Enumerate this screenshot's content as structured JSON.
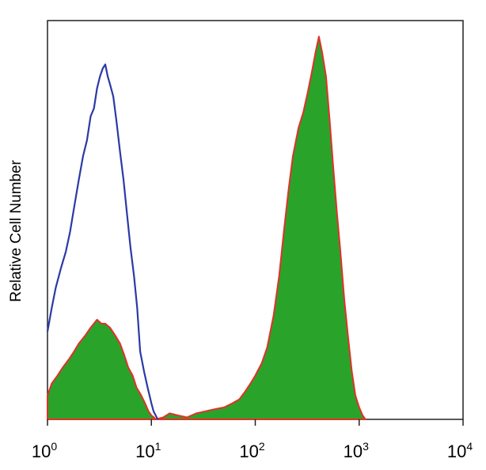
{
  "chart_data": {
    "type": "area",
    "title": "",
    "xlabel": "",
    "ylabel": "Relative Cell Number",
    "x_scale": "log",
    "xlim": [
      1,
      10000
    ],
    "ylim": [
      0,
      100
    ],
    "grid": false,
    "legend": "none",
    "x_ticks": [
      {
        "base": "10",
        "exp": "0",
        "value": 1
      },
      {
        "base": "10",
        "exp": "1",
        "value": 10
      },
      {
        "base": "10",
        "exp": "2",
        "value": 100
      },
      {
        "base": "10",
        "exp": "3",
        "value": 1000
      },
      {
        "base": "10",
        "exp": "4",
        "value": 10000
      }
    ],
    "series": [
      {
        "style": "line",
        "color": "#2b3aa6",
        "x": [
          1.0,
          1.1,
          1.2,
          1.35,
          1.5,
          1.65,
          1.8,
          2.0,
          2.2,
          2.4,
          2.6,
          2.8,
          3.0,
          3.2,
          3.4,
          3.6,
          3.8,
          4.0,
          4.3,
          4.6,
          5.0,
          5.4,
          5.8,
          6.3,
          6.8,
          7.3,
          7.8,
          8.5,
          9.2,
          10.0,
          10.5,
          11.0,
          11.5
        ],
        "y": [
          22,
          28,
          33,
          38,
          42,
          47,
          53,
          60,
          66,
          70,
          76,
          78,
          83,
          86,
          88,
          89,
          86,
          84,
          81,
          75,
          67,
          60,
          52,
          43,
          36,
          28,
          17,
          12,
          8,
          4,
          2,
          1,
          0
        ]
      },
      {
        "style": "filled",
        "color": "#2aa32a",
        "edge_color": "#e0322a",
        "x": [
          1.0,
          1.1,
          1.25,
          1.4,
          1.6,
          1.8,
          2.0,
          2.3,
          2.6,
          3.0,
          3.3,
          3.6,
          4.0,
          4.5,
          5.0,
          5.5,
          6.0,
          6.6,
          7.2,
          8.0,
          8.7,
          9.4,
          10.0,
          10.6,
          11.0
        ],
        "y": [
          6,
          9,
          11,
          13,
          15,
          17,
          19,
          21,
          23,
          25,
          24,
          24,
          23,
          21,
          19,
          16,
          13,
          11,
          8,
          6,
          4,
          2,
          1,
          0.5,
          0
        ]
      },
      {
        "style": "filled",
        "color": "#2aa32a",
        "edge_color": "#e0322a",
        "x": [
          11,
          13,
          15,
          18,
          22,
          27,
          33,
          40,
          50,
          60,
          70,
          80,
          90,
          100,
          115,
          130,
          150,
          170,
          190,
          210,
          230,
          260,
          290,
          320,
          350,
          380,
          410,
          440,
          480,
          520,
          560,
          610,
          660,
          720,
          780,
          850,
          920,
          1000,
          1080,
          1150
        ],
        "y": [
          0,
          0.5,
          1.5,
          1,
          0.5,
          1.5,
          2,
          2.5,
          3,
          4,
          5,
          7,
          9,
          11,
          14,
          18,
          26,
          36,
          48,
          58,
          66,
          73,
          77,
          82,
          87,
          92,
          96,
          92,
          86,
          75,
          64,
          52,
          42,
          30,
          21,
          12,
          6,
          3,
          1,
          0
        ]
      }
    ]
  }
}
